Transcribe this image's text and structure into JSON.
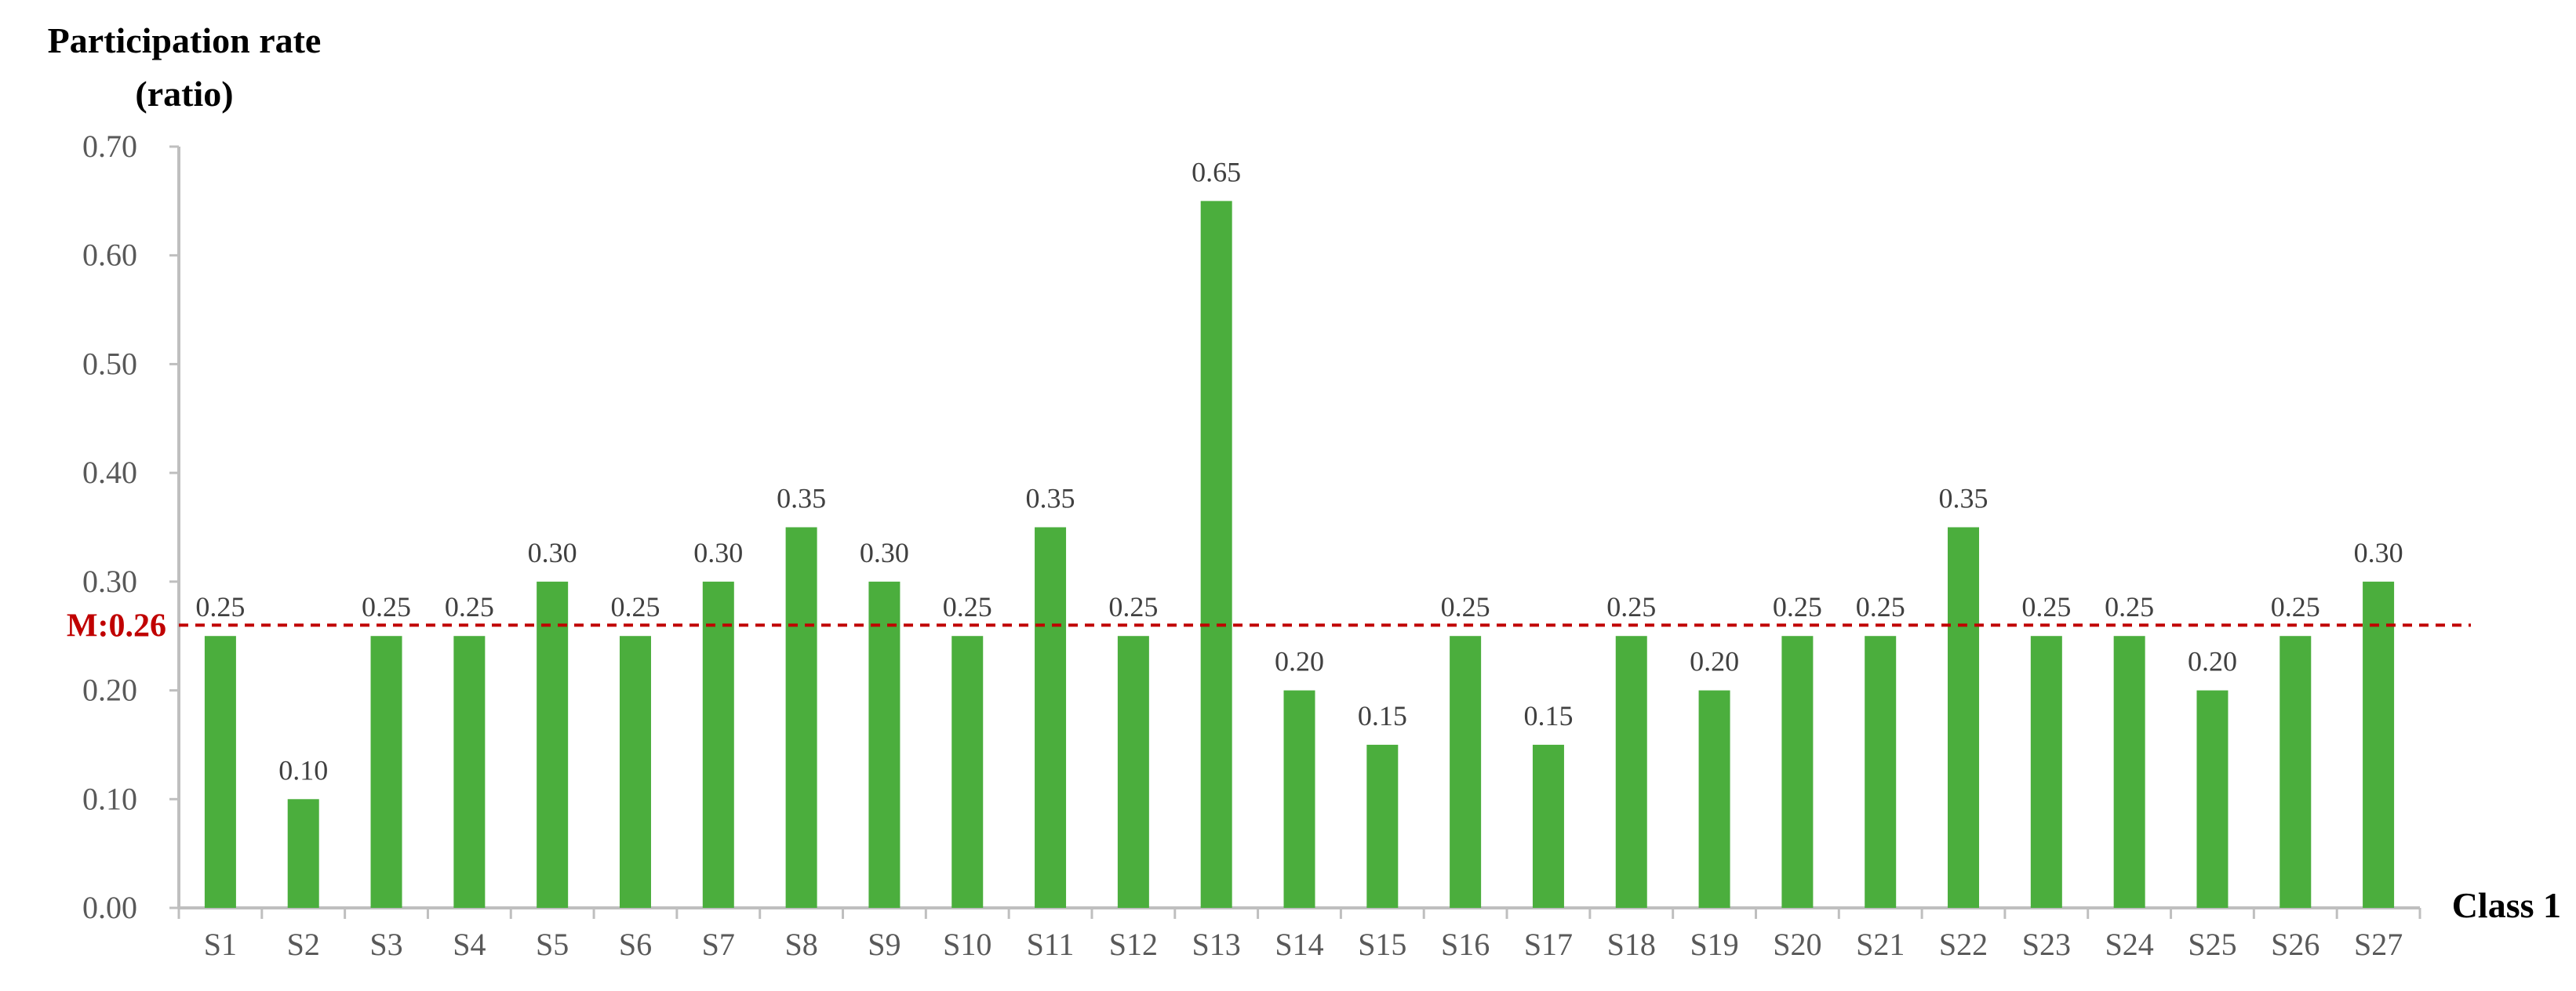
{
  "chart_data": {
    "type": "bar",
    "ylabel": [
      "Participation rate",
      "(ratio)"
    ],
    "xlabel": "Class 1",
    "ylim": [
      0,
      0.7
    ],
    "yticks": [
      "0.00",
      "0.10",
      "0.20",
      "0.30",
      "0.40",
      "0.50",
      "0.60",
      "0.70"
    ],
    "categories": [
      "S1",
      "S2",
      "S3",
      "S4",
      "S5",
      "S6",
      "S7",
      "S8",
      "S9",
      "S10",
      "S11",
      "S12",
      "S13",
      "S14",
      "S15",
      "S16",
      "S17",
      "S18",
      "S19",
      "S20",
      "S21",
      "S22",
      "S23",
      "S24",
      "S25",
      "S26",
      "S27"
    ],
    "values": [
      0.25,
      0.1,
      0.25,
      0.25,
      0.3,
      0.25,
      0.3,
      0.35,
      0.3,
      0.25,
      0.35,
      0.25,
      0.65,
      0.2,
      0.15,
      0.25,
      0.15,
      0.25,
      0.2,
      0.25,
      0.25,
      0.35,
      0.25,
      0.25,
      0.2,
      0.25,
      0.3
    ],
    "data_labels": [
      "0.25",
      "0.10",
      "0.25",
      "0.25",
      "0.30",
      "0.25",
      "0.30",
      "0.35",
      "0.30",
      "0.25",
      "0.35",
      "0.25",
      "0.65",
      "0.20",
      "0.15",
      "0.25",
      "0.15",
      "0.25",
      "0.20",
      "0.25",
      "0.25",
      "0.35",
      "0.25",
      "0.25",
      "0.20",
      "0.25",
      "0.30"
    ],
    "mean": {
      "value": 0.26,
      "label": "M:0.26",
      "color": "#c00000",
      "style": "dashed"
    },
    "bar_color": "#4bae3d",
    "axis_color": "#bfbfbf",
    "grid": false,
    "legend": "none"
  }
}
